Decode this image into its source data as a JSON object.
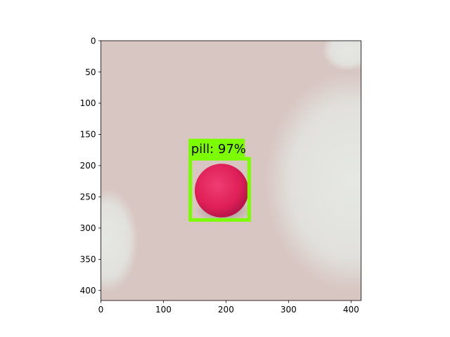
{
  "chart_data": {
    "type": "image",
    "title": "",
    "xlabel": "",
    "ylabel": "",
    "xlim": [
      0,
      416
    ],
    "ylim": [
      416,
      0
    ],
    "xticks": [
      0,
      100,
      200,
      300,
      400
    ],
    "yticks": [
      0,
      50,
      100,
      150,
      200,
      250,
      300,
      350,
      400
    ],
    "grid": false,
    "image_content": {
      "background": "pink-white terry towel texture",
      "colors": {
        "towel_pink": "#d8c6c2",
        "towel_white": "#e4e6e2",
        "pill": "#e0205a",
        "box": "#7cfc00"
      }
    },
    "detections": [
      {
        "label": "pill: 97%",
        "class": "pill",
        "score": 0.97,
        "box": {
          "x0": 143,
          "y0": 189,
          "x1": 237,
          "y1": 287
        },
        "object_center": [
          193,
          240
        ],
        "object_radius": 43
      }
    ]
  }
}
